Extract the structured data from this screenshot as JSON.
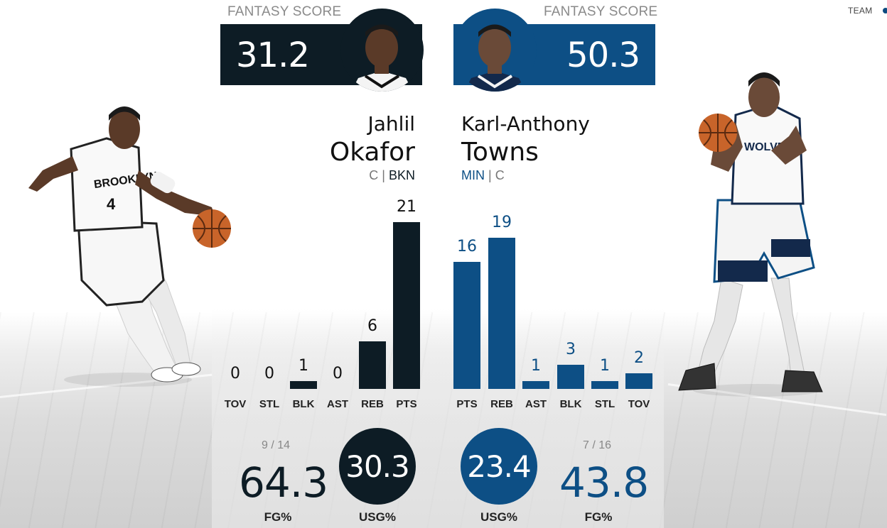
{
  "header": {
    "team_link": "TEAM"
  },
  "left_player": {
    "fantasy_label": "FANTASY SCORE",
    "fantasy_score": "31.2",
    "first_name": "Jahlil",
    "last_name": "Okafor",
    "position": "C",
    "separator": "|",
    "team": "BKN",
    "jersey_text": "BROOKLYN",
    "jersey_number": "4",
    "colors": {
      "primary": "#0d1c25"
    },
    "stats": [
      {
        "label": "TOV",
        "value": 0
      },
      {
        "label": "STL",
        "value": 0
      },
      {
        "label": "BLK",
        "value": 1
      },
      {
        "label": "AST",
        "value": 0
      },
      {
        "label": "REB",
        "value": 6
      },
      {
        "label": "PTS",
        "value": 21
      }
    ],
    "fg_attempts": "9 / 14",
    "fg_pct": "64.3",
    "fg_label": "FG%",
    "usg": "30.3",
    "usg_label": "USG%"
  },
  "right_player": {
    "fantasy_label": "FANTASY SCORE",
    "fantasy_score": "50.3",
    "first_name": "Karl-Anthony",
    "last_name": "Towns",
    "team": "MIN",
    "separator": "|",
    "position": "C",
    "jersey_text": "WOLVES",
    "colors": {
      "primary": "#0d4f85"
    },
    "stats": [
      {
        "label": "PTS",
        "value": 16
      },
      {
        "label": "REB",
        "value": 19
      },
      {
        "label": "AST",
        "value": 1
      },
      {
        "label": "BLK",
        "value": 3
      },
      {
        "label": "STL",
        "value": 1
      },
      {
        "label": "TOV",
        "value": 2
      }
    ],
    "fg_attempts": "7 / 16",
    "fg_pct": "43.8",
    "fg_label": "FG%",
    "usg": "23.4",
    "usg_label": "USG%"
  }
}
